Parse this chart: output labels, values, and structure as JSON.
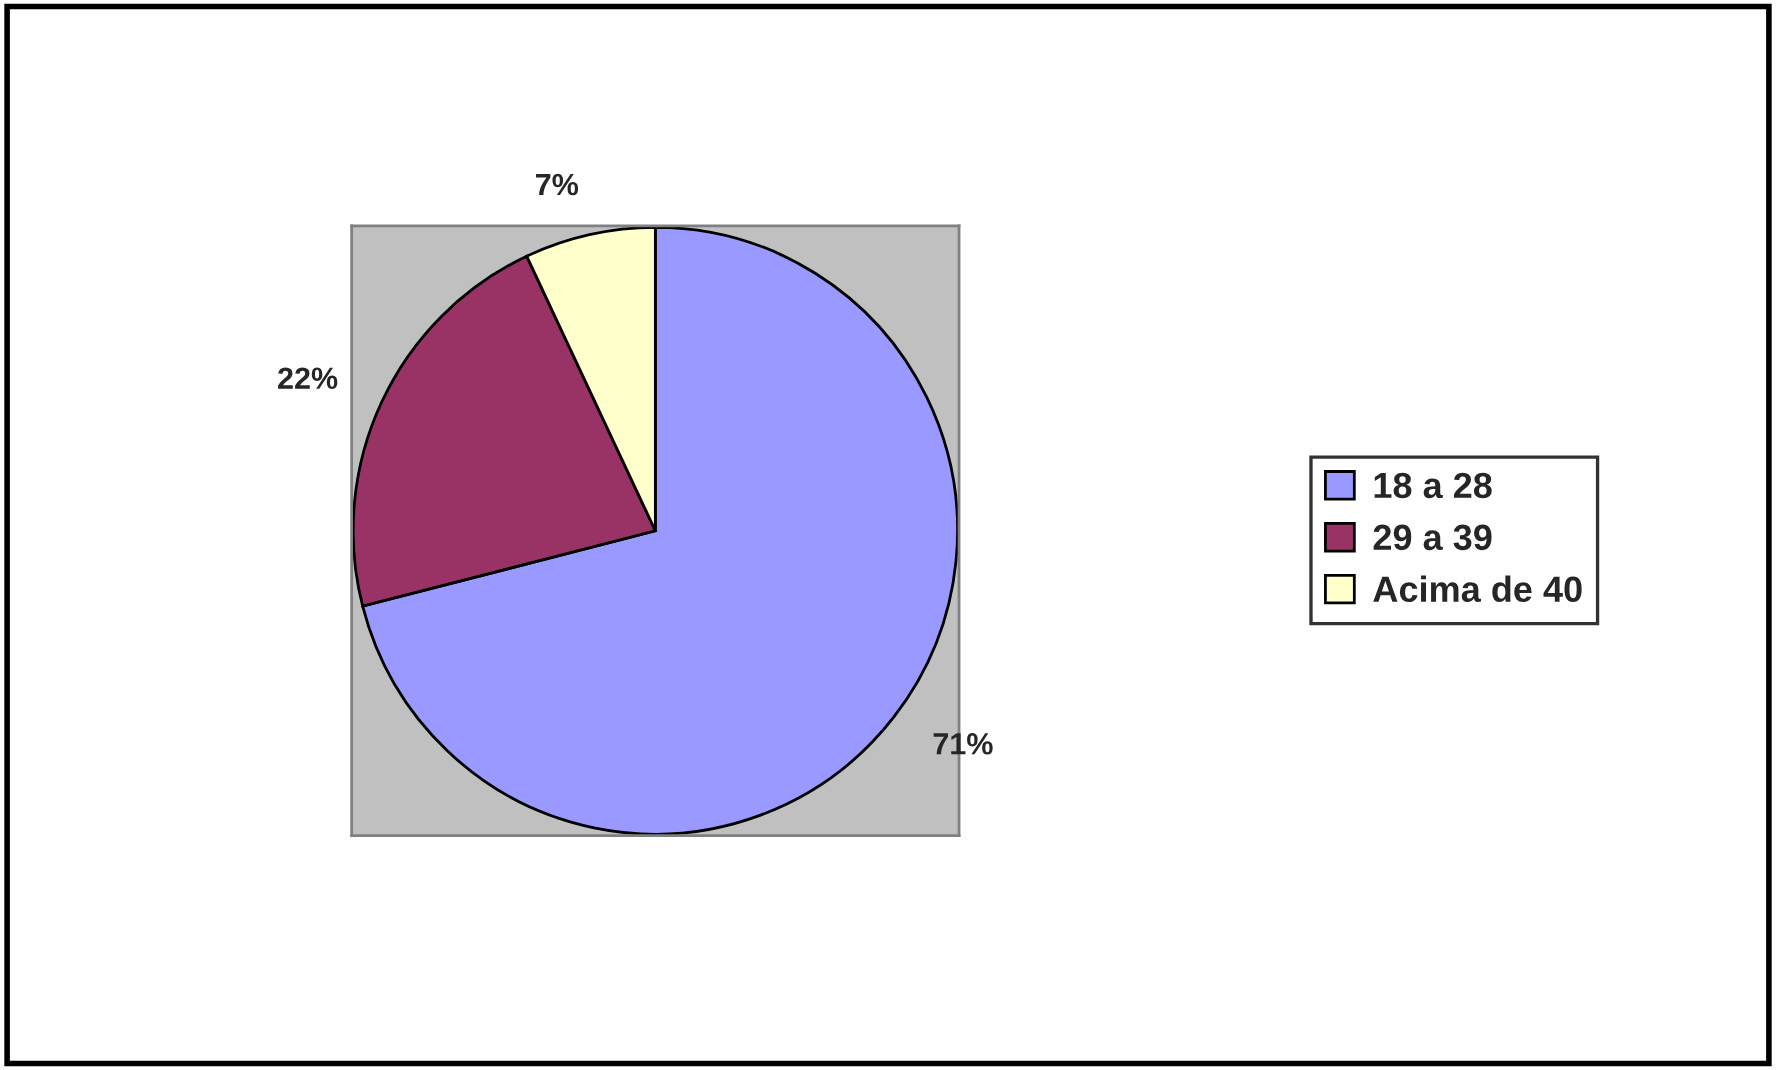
{
  "chart_data": {
    "type": "pie",
    "categories": [
      "18 a 28",
      "29 a 39",
      "Acima de 40"
    ],
    "values": [
      71,
      22,
      7
    ],
    "colors": [
      "#9999ff",
      "#993366",
      "#ffffcc"
    ],
    "value_labels": [
      "71%",
      "22%",
      "7%"
    ],
    "legend": "right"
  }
}
